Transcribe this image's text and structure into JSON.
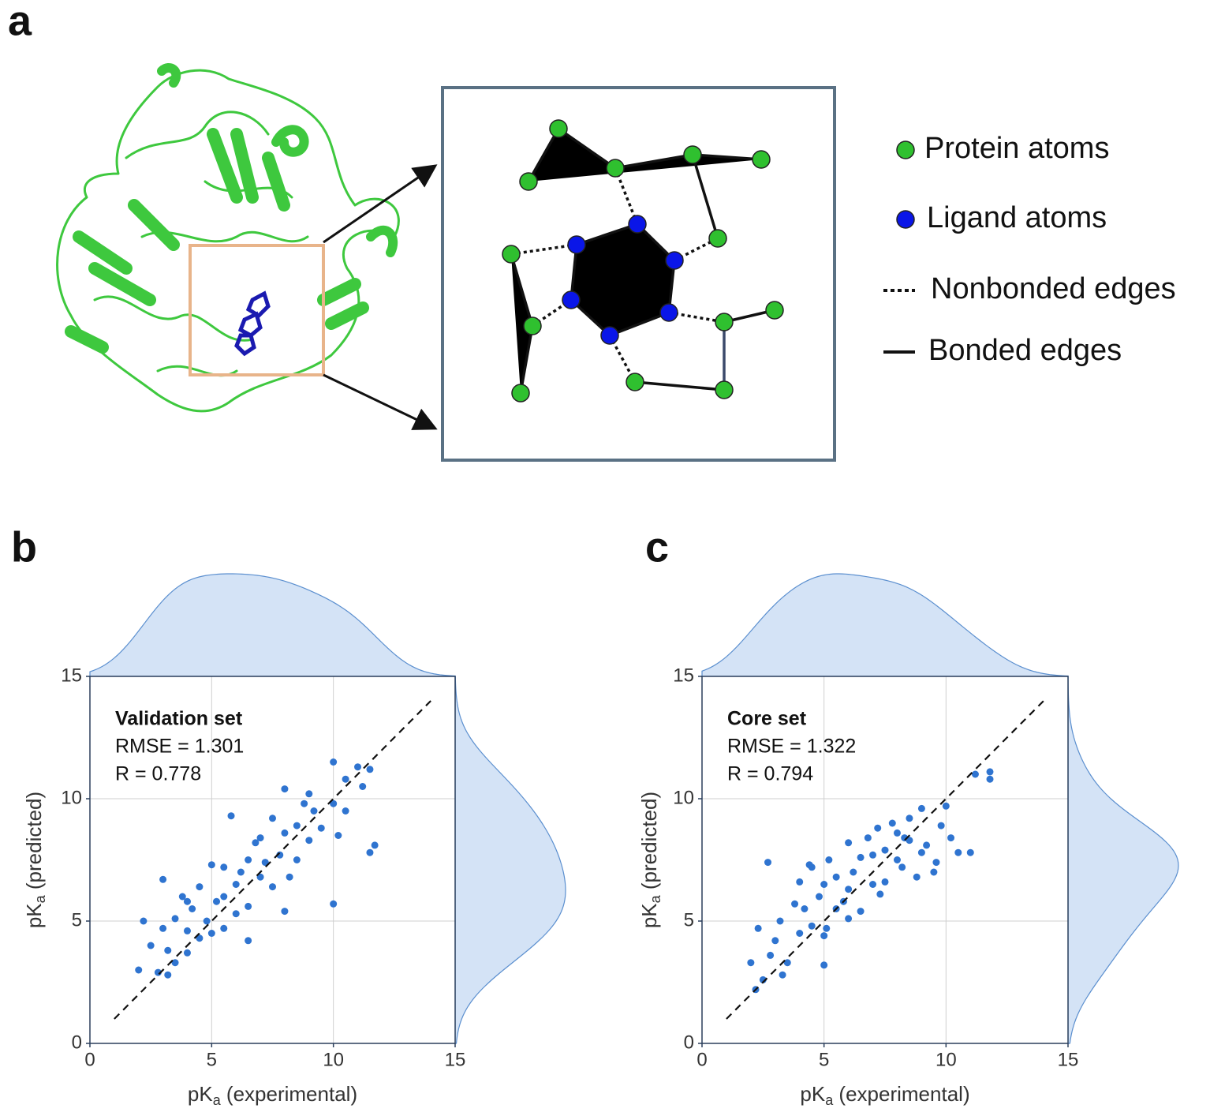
{
  "panel_labels": [
    "a",
    "b",
    "c"
  ],
  "diagram": {
    "legend": [
      "Protein atoms",
      "Ligand atoms",
      "Nonbonded edges",
      "Bonded edges"
    ]
  },
  "chart_data": [
    {
      "type": "scatter",
      "xlabel": {
        "main": "pK",
        "sub": "a",
        "rest": " (experimental)"
      },
      "ylabel": {
        "main": "pK",
        "sub": "a",
        "rest": " (predicted)"
      },
      "annotation": [
        "Validation set",
        "RMSE = 1.301",
        "R = 0.778"
      ],
      "xlim": [
        0,
        15
      ],
      "ylim": [
        0,
        15
      ],
      "xticks": [
        0,
        5,
        10,
        15
      ],
      "yticks": [
        0,
        5,
        10,
        15
      ],
      "grid": true,
      "color": "#2f74d0",
      "diagonal": [
        1,
        14
      ],
      "x": [
        2,
        2.2,
        2.5,
        2.8,
        3,
        3,
        3.2,
        3.5,
        3.5,
        3.8,
        4,
        4,
        4.2,
        4.5,
        4.5,
        4.8,
        5,
        5,
        5.2,
        5.5,
        5.5,
        5.8,
        6,
        6,
        6.2,
        6.5,
        6.5,
        6.8,
        7,
        7,
        7.2,
        7.5,
        7.5,
        7.8,
        8,
        8,
        8.2,
        8.5,
        8.5,
        8.8,
        9,
        9,
        9.2,
        9.5,
        10,
        10,
        10,
        10.2,
        10.5,
        11,
        11.2,
        11.5,
        11.7,
        11.5,
        3.2,
        5.5,
        6.5,
        8,
        10.5,
        4
      ],
      "values": [
        3,
        5,
        4,
        2.9,
        4.7,
        6.7,
        3.8,
        5.1,
        3.3,
        6,
        4.6,
        3.7,
        5.5,
        4.3,
        6.4,
        5,
        4.5,
        7.3,
        5.8,
        6,
        4.7,
        9.3,
        6.5,
        5.3,
        7,
        7.5,
        5.6,
        8.2,
        6.8,
        8.4,
        7.4,
        6.4,
        9.2,
        7.7,
        8.6,
        10.4,
        6.8,
        8.9,
        7.5,
        9.8,
        8.3,
        10.2,
        9.5,
        8.8,
        5.7,
        9.8,
        11.5,
        8.5,
        10.8,
        11.3,
        10.5,
        11.2,
        8.1,
        7.8,
        2.8,
        7.2,
        4.2,
        5.4,
        9.5,
        5.8
      ]
    },
    {
      "type": "scatter",
      "xlabel": {
        "main": "pK",
        "sub": "a",
        "rest": " (experimental)"
      },
      "ylabel": {
        "main": "pK",
        "sub": "a",
        "rest": " (predicted)"
      },
      "annotation": [
        "Core set",
        "RMSE = 1.322",
        "R = 0.794"
      ],
      "xlim": [
        0,
        15
      ],
      "ylim": [
        0,
        15
      ],
      "xticks": [
        0,
        5,
        10,
        15
      ],
      "yticks": [
        0,
        5,
        10,
        15
      ],
      "grid": true,
      "color": "#2f74d0",
      "diagonal": [
        1,
        14
      ],
      "x": [
        2,
        2.2,
        2.3,
        2.5,
        2.7,
        2.8,
        3,
        3.2,
        3.5,
        3.8,
        4,
        4,
        4.2,
        4.5,
        4.5,
        4.8,
        5,
        5,
        5,
        5.2,
        5.5,
        5.5,
        5.8,
        6,
        6,
        6.2,
        6.5,
        6.5,
        6.8,
        7,
        7,
        7.2,
        7.5,
        7.5,
        7.8,
        8,
        8,
        8.2,
        8.5,
        8.5,
        8.8,
        9,
        9,
        9.2,
        9.5,
        9.8,
        10,
        10.2,
        10.5,
        11,
        11.2,
        11.8,
        11.8,
        6,
        7.3,
        8.3,
        4.4,
        5.1,
        3.3,
        9.6
      ],
      "values": [
        3.3,
        2.2,
        4.7,
        2.6,
        7.4,
        3.6,
        4.2,
        5,
        3.3,
        5.7,
        4.5,
        6.6,
        5.5,
        4.8,
        7.2,
        6,
        3.2,
        4.4,
        6.5,
        7.5,
        5.5,
        6.8,
        5.8,
        6.3,
        8.2,
        7,
        5.4,
        7.6,
        8.4,
        6.5,
        7.7,
        8.8,
        6.6,
        7.9,
        9,
        7.5,
        8.6,
        7.2,
        8.3,
        9.2,
        6.8,
        7.8,
        9.6,
        8.1,
        7,
        8.9,
        9.7,
        8.4,
        7.8,
        7.8,
        11,
        11.1,
        10.8,
        5.1,
        6.1,
        8.4,
        7.3,
        4.7,
        2.8,
        7.4
      ]
    }
  ]
}
